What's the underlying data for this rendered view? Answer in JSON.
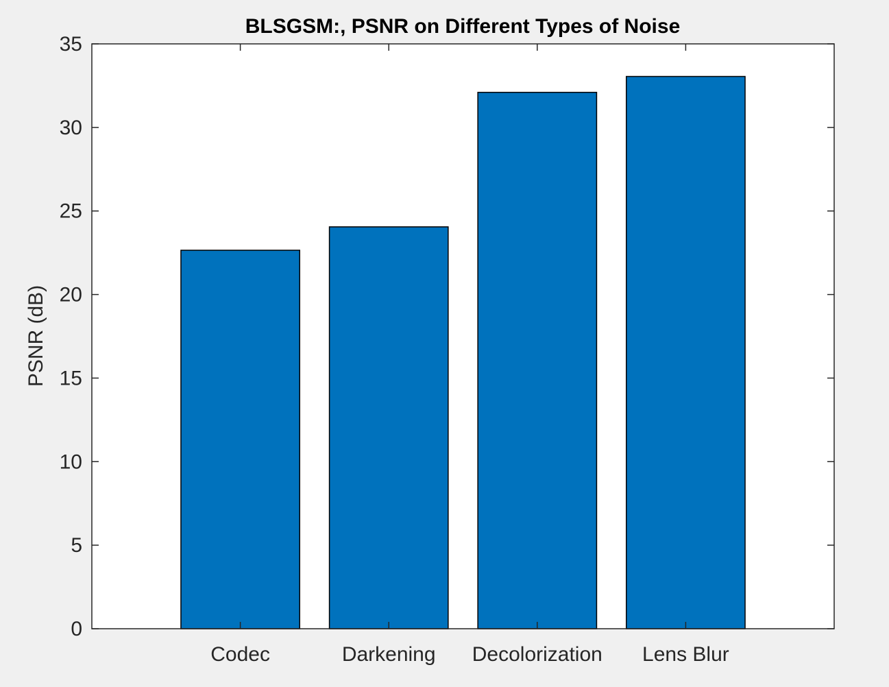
{
  "chart_data": {
    "type": "bar",
    "title": "BLSGSM:, PSNR on Different Types of Noise",
    "xlabel": "",
    "ylabel": "PSNR (dB)",
    "categories": [
      "Codec",
      "Darkening",
      "Decolorization",
      "Lens Blur"
    ],
    "values": [
      22.65,
      24.05,
      32.1,
      33.05
    ],
    "ylim": [
      0,
      35
    ],
    "yticks": [
      0,
      5,
      10,
      15,
      20,
      25,
      30,
      35
    ],
    "grid": false,
    "legend": "none",
    "colors": {
      "bar_fill": "#0072bd",
      "bar_edge": "#000000",
      "axes_bg": "#ffffff",
      "figure_bg": "#f0f0f0",
      "axis_line": "#262626"
    }
  }
}
